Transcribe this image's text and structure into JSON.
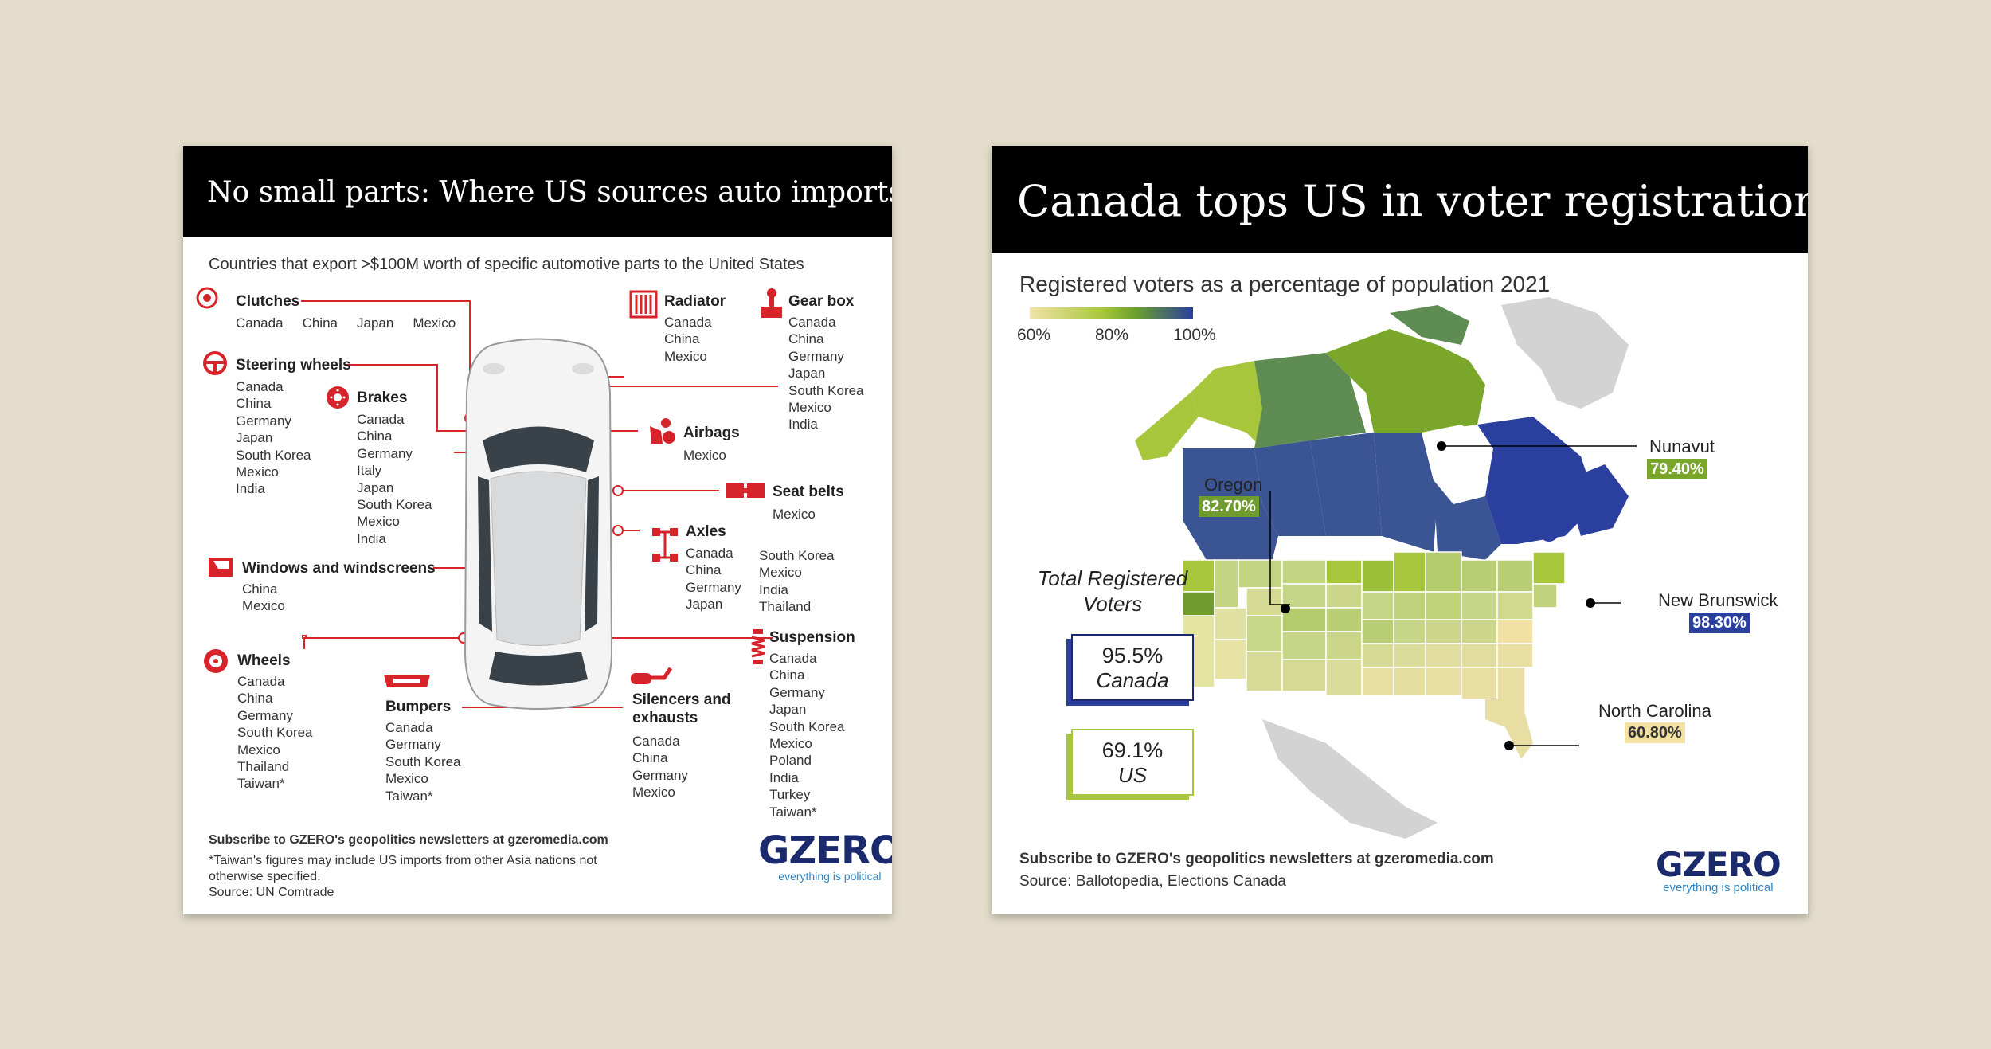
{
  "left": {
    "title": "No small parts: Where US sources auto imports",
    "subtitle": "Countries that export >$100M worth of specific automotive parts to the United States",
    "parts": {
      "clutches": {
        "title": "Clutches",
        "countries": [
          "Canada",
          "China",
          "Japan",
          "Mexico"
        ]
      },
      "steering": {
        "title": "Steering wheels",
        "countries": [
          "Canada",
          "China",
          "Germany",
          "Japan",
          "South Korea",
          "Mexico",
          "India"
        ]
      },
      "brakes": {
        "title": "Brakes",
        "countries": [
          "Canada",
          "China",
          "Germany",
          "Italy",
          "Japan",
          "South Korea",
          "Mexico",
          "India"
        ]
      },
      "windows": {
        "title": "Windows and windscreens",
        "countries": [
          "China",
          "Mexico"
        ]
      },
      "wheels": {
        "title": "Wheels",
        "countries": [
          "Canada",
          "China",
          "Germany",
          "South Korea",
          "Mexico",
          "Thailand",
          "Taiwan*"
        ]
      },
      "bumpers": {
        "title": "Bumpers",
        "countries": [
          "Canada",
          "Germany",
          "South Korea",
          "Mexico",
          "Taiwan*"
        ]
      },
      "radiator": {
        "title": "Radiator",
        "countries": [
          "Canada",
          "China",
          "Mexico"
        ]
      },
      "gearbox": {
        "title": "Gear box",
        "countries": [
          "Canada",
          "China",
          "Germany",
          "Japan",
          "South Korea",
          "Mexico",
          "India"
        ]
      },
      "airbags": {
        "title": "Airbags",
        "countries": [
          "Mexico"
        ]
      },
      "seatbelts": {
        "title": "Seat belts",
        "countries": [
          "Mexico"
        ]
      },
      "axles": {
        "title": "Axles",
        "countries_col1": [
          "Canada",
          "China",
          "Germany",
          "Japan"
        ],
        "countries_col2": [
          "South Korea",
          "Mexico",
          "India",
          "Thailand"
        ]
      },
      "silencers": {
        "title_line1": "Silencers and",
        "title_line2": "exhausts",
        "countries": [
          "Canada",
          "China",
          "Germany",
          "Mexico"
        ]
      },
      "suspension": {
        "title": "Suspension",
        "countries": [
          "Canada",
          "China",
          "Germany",
          "Japan",
          "South Korea",
          "Mexico",
          "Poland",
          "India",
          "Turkey",
          "Taiwan*"
        ]
      }
    },
    "footer": {
      "subscribe": "Subscribe to GZERO's geopolitics newsletters at gzeromedia.com",
      "note_line1": "*Taiwan's figures may include US imports from other Asia nations not",
      "note_line2": "otherwise specified.",
      "source": "Source: UN Comtrade"
    },
    "logo": {
      "word": "GZERO",
      "tagline": "everything is political"
    }
  },
  "right": {
    "title": "Canada tops US in voter registration",
    "subtitle": "Registered voters as a percentage of population 2021",
    "legend": {
      "ticks": [
        "60%",
        "80%",
        "100%"
      ],
      "colors": [
        "#f1e3a6",
        "#a7c63c",
        "#6aa02c",
        "#2b3f9e"
      ]
    },
    "totals": {
      "heading_line1": "Total Registered",
      "heading_line2": "Voters",
      "canada_value": "95.5%",
      "canada_label": "Canada",
      "us_value": "69.1%",
      "us_label": "US"
    },
    "callouts": {
      "nunavut": {
        "name": "Nunavut",
        "value": "79.40%",
        "color": "#7aa62a"
      },
      "oregon": {
        "name": "Oregon",
        "value": "82.70%",
        "color": "#6f9b2f"
      },
      "new_brunswick": {
        "name": "New Brunswick",
        "value": "98.30%",
        "color": "#2b3f9e"
      },
      "north_carolina": {
        "name": "North Carolina",
        "value": "60.80%",
        "color": "#f3e1a3"
      }
    },
    "footer": {
      "subscribe": "Subscribe to GZERO's geopolitics newsletters at gzeromedia.com",
      "source": "Source: Ballotopedia, Elections Canada"
    },
    "logo": {
      "word": "GZERO",
      "tagline": "everything is political"
    }
  },
  "colors": {
    "accent_red": "#d7232a",
    "navy": "#1a2a6c",
    "background": "#e4ddcb"
  }
}
